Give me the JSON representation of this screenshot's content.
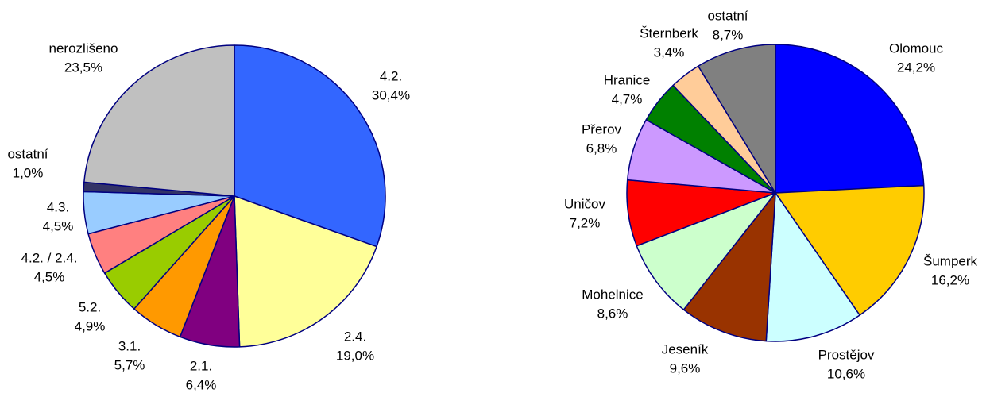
{
  "chart_data": [
    {
      "type": "pie",
      "categories": [
        "4.2.",
        "2.4.",
        "2.1.",
        "3.1.",
        "5.2.",
        "4.2. / 2.4.",
        "4.3.",
        "ostatní",
        "nerozlišeno"
      ],
      "values": [
        30.4,
        19.0,
        6.4,
        5.7,
        4.9,
        4.5,
        4.5,
        1.0,
        23.5
      ],
      "value_labels": [
        "30,4%",
        "19,0%",
        "6,4%",
        "5,7%",
        "4,9%",
        "4,5%",
        "4,5%",
        "1,0%",
        "23,5%"
      ],
      "colors": [
        "#3366ff",
        "#ffff99",
        "#800080",
        "#ff9900",
        "#99cc00",
        "#ff8080",
        "#99ccff",
        "#333366",
        "#c0c0c0"
      ]
    },
    {
      "type": "pie",
      "categories": [
        "Olomouc",
        "Šumperk",
        "Prostějov",
        "Jeseník",
        "Mohelnice",
        "Uničov",
        "Přerov",
        "Hranice",
        "Šternberk",
        "ostatní"
      ],
      "values": [
        24.2,
        16.2,
        10.6,
        9.6,
        8.6,
        7.2,
        6.8,
        4.7,
        3.4,
        8.7
      ],
      "value_labels": [
        "24,2%",
        "16,2%",
        "10,6%",
        "9,6%",
        "8,6%",
        "7,2%",
        "6,8%",
        "4,7%",
        "3,4%",
        "8,7%"
      ],
      "colors": [
        "#0000ff",
        "#ffcc00",
        "#ccffff",
        "#993300",
        "#ccffcc",
        "#ff0000",
        "#cc99ff",
        "#008000",
        "#ffcc99",
        "#808080"
      ]
    }
  ]
}
